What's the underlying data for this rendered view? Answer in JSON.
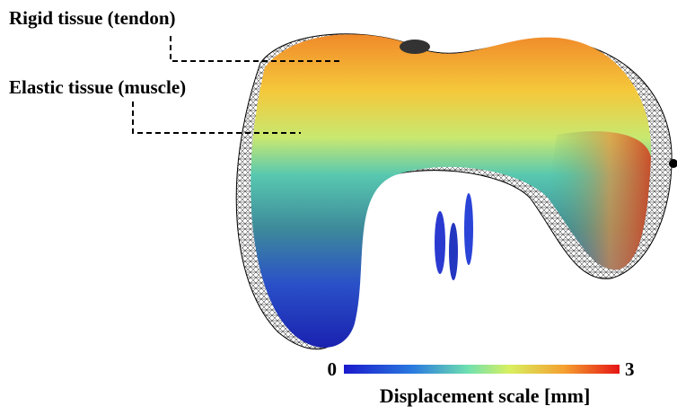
{
  "labels": {
    "rigid": "Rigid tissue (tendon)",
    "elastic": "Elastic tissue (muscle)"
  },
  "scale": {
    "min": 0,
    "max": 3,
    "title": "Displacement scale [mm]"
  }
}
